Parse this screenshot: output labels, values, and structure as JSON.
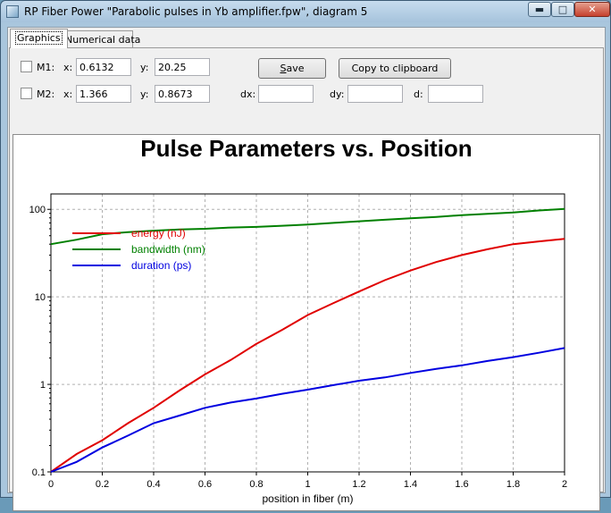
{
  "window": {
    "title": "RP Fiber Power \"Parabolic pulses in Yb amplifier.fpw\", diagram 5",
    "minimize_glyph": "▬",
    "maximize_glyph": "□",
    "close_glyph": "✕"
  },
  "tabs": [
    {
      "label": "Graphics",
      "active": true
    },
    {
      "label": "Numerical data",
      "active": false
    }
  ],
  "markers": {
    "m1": {
      "label": "M1:",
      "x_label": "x:",
      "x_value": "0.6132",
      "y_label": "y:",
      "y_value": "20.25",
      "checked": false
    },
    "m2": {
      "label": "M2:",
      "x_label": "x:",
      "x_value": "1.366",
      "y_label": "y:",
      "y_value": "0.8673",
      "checked": false
    }
  },
  "buttons": {
    "save_underline": "S",
    "save_rest": "ave",
    "copy_label": "Copy to clipboard"
  },
  "differences": {
    "dx_label": "dx:",
    "dx_value": "",
    "dy_label": "dy:",
    "dy_value": "",
    "d_label": "d:",
    "d_value": ""
  },
  "chart_data": {
    "type": "line",
    "title": "Pulse Parameters vs. Position",
    "xlabel": "position in fiber (m)",
    "ylabel": "",
    "xlim": [
      0,
      2
    ],
    "ylim": [
      0.1,
      150
    ],
    "y_scale": "log",
    "grid": true,
    "legend_position": "upper-left",
    "x_ticks": [
      "0",
      "0.2",
      "0.4",
      "0.6",
      "0.8",
      "1",
      "1.2",
      "1.4",
      "1.6",
      "1.8",
      "2"
    ],
    "y_ticks": [
      "0.1",
      "1",
      "10",
      "100"
    ],
    "x": [
      0,
      0.1,
      0.2,
      0.3,
      0.4,
      0.5,
      0.6,
      0.7,
      0.8,
      0.9,
      1.0,
      1.1,
      1.2,
      1.3,
      1.4,
      1.5,
      1.6,
      1.7,
      1.8,
      1.9,
      2.0
    ],
    "series": [
      {
        "name": "energy (nJ)",
        "color": "#e00000",
        "values": [
          0.1,
          0.16,
          0.23,
          0.36,
          0.54,
          0.85,
          1.3,
          1.9,
          2.9,
          4.2,
          6.2,
          8.5,
          11.5,
          15.5,
          20,
          25,
          30,
          35,
          40,
          43,
          46
        ]
      },
      {
        "name": "bandwidth (nm)",
        "color": "#008000",
        "values": [
          40,
          45,
          52,
          55,
          57,
          59,
          60,
          62,
          63,
          65,
          67,
          70,
          73,
          76,
          79,
          82,
          86,
          89,
          92,
          97,
          101
        ]
      },
      {
        "name": "duration (ps)",
        "color": "#0000e0",
        "values": [
          0.1,
          0.13,
          0.19,
          0.26,
          0.36,
          0.44,
          0.54,
          0.62,
          0.69,
          0.78,
          0.87,
          0.98,
          1.1,
          1.2,
          1.35,
          1.5,
          1.65,
          1.85,
          2.05,
          2.3,
          2.6
        ]
      }
    ]
  }
}
